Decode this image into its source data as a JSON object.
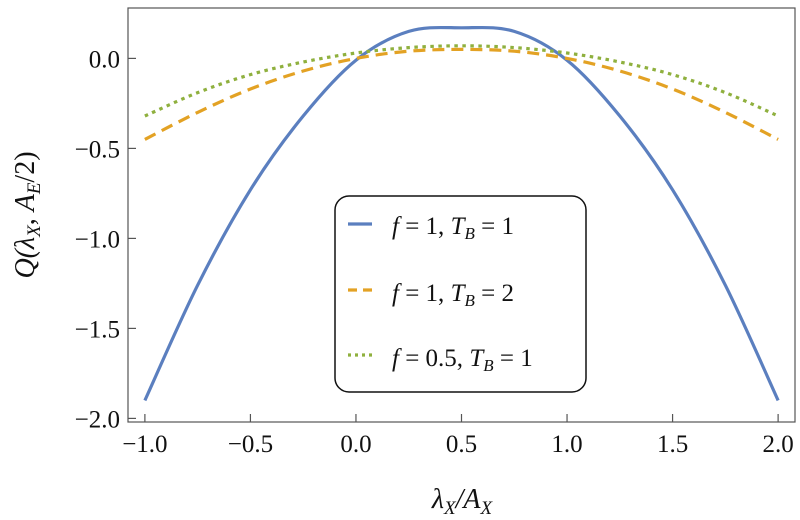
{
  "chart_data": {
    "type": "line",
    "title": "",
    "xlabel": "λX/AX",
    "ylabel": "Q(λX, AE/2)",
    "xlim": [
      -1.08,
      2.08
    ],
    "ylim": [
      -2.02,
      0.28
    ],
    "xticks": [
      -1.0,
      -0.5,
      0.0,
      0.5,
      1.0,
      1.5,
      2.0
    ],
    "xtick_labels": [
      "−1.0",
      "−0.5",
      "0.0",
      "0.5",
      "1.0",
      "1.5",
      "2.0"
    ],
    "yticks": [
      -2.0,
      -1.5,
      -1.0,
      -0.5,
      0.0
    ],
    "ytick_labels": [
      "−2.0",
      "−1.5",
      "−1.0",
      "−0.5",
      "0.0"
    ],
    "grid": false,
    "legend_position": "center-bottom",
    "series": [
      {
        "name": "f = 1, TB = 1",
        "style": "solid",
        "color": "#5b7fbf",
        "x": [
          -1.0,
          -0.75,
          -0.5,
          -0.25,
          0.0,
          0.25,
          0.5,
          0.75,
          1.0,
          1.25,
          1.5,
          1.75,
          2.0
        ],
        "y": [
          -1.9,
          -1.26,
          -0.73,
          -0.32,
          -0.01,
          0.15,
          0.17,
          0.15,
          -0.01,
          -0.32,
          -0.73,
          -1.26,
          -1.9
        ]
      },
      {
        "name": "f = 1, TB = 2",
        "style": "dashed",
        "color": "#e3a224",
        "x": [
          -1.0,
          -0.75,
          -0.5,
          -0.25,
          0.0,
          0.25,
          0.5,
          0.75,
          1.0,
          1.25,
          1.5,
          1.75,
          2.0
        ],
        "y": [
          -0.45,
          -0.3,
          -0.17,
          -0.07,
          0.0,
          0.04,
          0.05,
          0.04,
          0.0,
          -0.07,
          -0.17,
          -0.3,
          -0.45
        ]
      },
      {
        "name": "f = 0.5, TB = 1",
        "style": "dotted",
        "color": "#8fb03e",
        "x": [
          -1.0,
          -0.75,
          -0.5,
          -0.25,
          0.0,
          0.25,
          0.5,
          0.75,
          1.0,
          1.25,
          1.5,
          1.75,
          2.0
        ],
        "y": [
          -0.32,
          -0.19,
          -0.09,
          -0.02,
          0.03,
          0.06,
          0.07,
          0.06,
          0.03,
          -0.02,
          -0.09,
          -0.19,
          -0.32
        ]
      }
    ]
  }
}
